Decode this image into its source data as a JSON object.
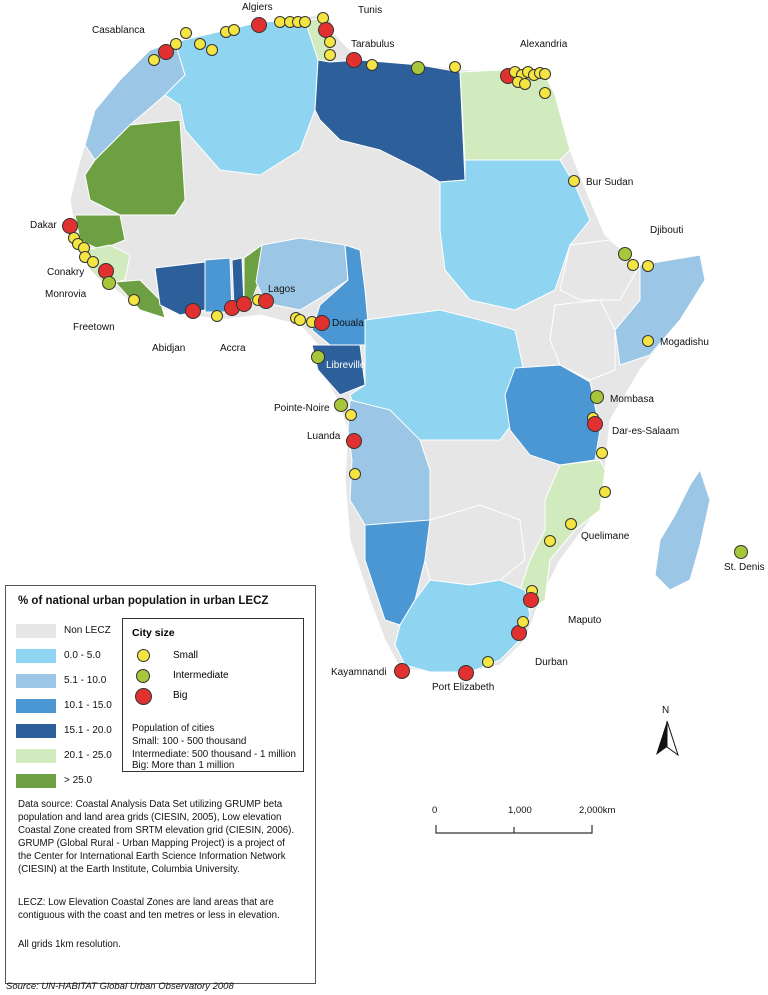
{
  "colors": {
    "non_lecz": "#e6e6e6",
    "c0_5": "#8fd4f0",
    "c5_10": "#9cc6e6",
    "c10_15": "#4a97d4",
    "c15_20": "#2d5f9a",
    "c20_25": "#d2ebbe",
    "c25": "#6da043",
    "small": "#f4e542",
    "intermediate": "#a8c63a",
    "big": "#e03030"
  },
  "legend": {
    "title": "% of national urban population in urban LECZ",
    "classes": [
      {
        "label": "Non LECZ",
        "color": "#e6e6e6"
      },
      {
        "label": "0.0 - 5.0",
        "color": "#8fd4f0"
      },
      {
        "label": "5.1 - 10.0",
        "color": "#9cc6e6"
      },
      {
        "label": "10.1 - 15.0",
        "color": "#4a97d4"
      },
      {
        "label": "15.1 - 20.0",
        "color": "#2d5f9a"
      },
      {
        "label": "20.1 - 25.0",
        "color": "#d2ebbe"
      },
      {
        "label": "> 25.0",
        "color": "#6da043"
      }
    ],
    "city_size": {
      "title": "City size",
      "items": [
        {
          "label": "Small",
          "color": "#f4e542"
        },
        {
          "label": "Intermediate",
          "color": "#a8c63a"
        },
        {
          "label": "Big",
          "color": "#e03030"
        }
      ],
      "population_title": "Population of cities",
      "population_lines": [
        "Small: 100 - 500 thousand",
        "Intermediate: 500 thousand - 1 million",
        "Big: More than 1 million"
      ]
    },
    "data_source": [
      "Data source: Coastal Analysis Data Set utilizing GRUMP beta",
      "population and land area grids (CIESIN, 2005), Low elevation",
      "Coastal Zone created from SRTM elevation grid (CIESIN, 2006).",
      "GRUMP (Global Rural - Urban Mapping Project) is a project of",
      "the Center for International Earth Science Information Network",
      "(CIESIN) at the Earth Institute, Columbia University."
    ],
    "lecz_note": [
      "LECZ: Low Elevation Coastal Zones are land areas that are",
      "contiguous with the coast and ten metres or less in elevation."
    ],
    "grids_note": "All grids 1km resolution."
  },
  "city_labels": [
    "Casablanca",
    "Algiers",
    "Tunis",
    "Tarabulus",
    "Alexandria",
    "Bur Sudan",
    "Djibouti",
    "Dakar",
    "Conakry",
    "Monrovia",
    "Freetown",
    "Abidjan",
    "Accra",
    "Lagos",
    "Douala",
    "Libreville",
    "Pointe-Noire",
    "Luanda",
    "Mogadishu",
    "Mombasa",
    "Dar-es-Salaam",
    "Quelimane",
    "Maputo",
    "Durban",
    "Kayamnandi",
    "Port Elizabeth",
    "St. Denis"
  ],
  "scale_bar": {
    "ticks": [
      "0",
      "1,000",
      "2,000km"
    ]
  },
  "north_label": "N",
  "source": "Source: UN-HABITAT Global Urban Observatory 2008"
}
